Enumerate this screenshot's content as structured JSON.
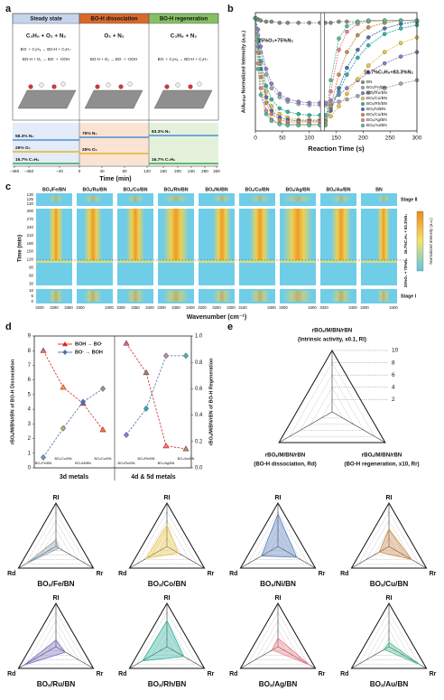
{
  "figure": {
    "panel_labels": [
      "a",
      "b",
      "c",
      "d",
      "e"
    ],
    "panel_a": {
      "phases": [
        "Steady state",
        "BO-H dissociation",
        "BO-H regeneration"
      ],
      "feeds": [
        "C₃H₈ + O₂ + N₂",
        "O₂ + N₂",
        "C₃H₈ + N₂"
      ],
      "reactions": [
        "BO· + C₃H₈ → BO-H + C₃H₇·",
        "BO-H + O₂ → BO· + ·OOH",
        "BO-H + O₂ → BO· + ·OOH",
        "BO· + C₃H₈ → BO-H + C₃H₇·"
      ],
      "gas_labels": [
        "58.3% N₂",
        "25% O₂",
        "16.7% C₃H₈",
        "75% N₂",
        "25% O₂",
        "83.3% N₂",
        "16.7% C₃H₈"
      ],
      "xticks": [
        "−480",
        "−460",
        "−40",
        "0",
        "40",
        "80",
        "120",
        "160",
        "200",
        "240",
        "280",
        "300"
      ],
      "xlabel": "Time (min)"
    },
    "panel_c": {
      "columns": [
        "BOₓ/Fe/BN",
        "BOₓ/Ru/BN",
        "BOₓ/Co/BN",
        "BOₓ/Rh/BN",
        "BOₓ/Ni/BN",
        "BOₓ/Cu/BN",
        "BOₓ/Ag/BN",
        "BOₓ/Au/BN",
        "BN"
      ],
      "stages": [
        "Stage II",
        "Stage I"
      ],
      "yticks_top": [
        "130",
        "125",
        "120"
      ],
      "yticks_mid": [
        "300",
        "270",
        "240",
        "210",
        "180",
        "150",
        "120",
        "90",
        "60",
        "30"
      ],
      "yticks_bottom": [
        "10",
        "5",
        "0"
      ],
      "side_labels": [
        "16.7%C₃H₈ + 83.3%N₂",
        "25%O₂ + 75%N₂"
      ],
      "ylabel": "Time (min)",
      "xticks": [
        [
          "3200",
          "3280",
          "3360"
        ],
        [
          "3300",
          "3400"
        ],
        [
          "3300",
          "3350",
          "3400"
        ],
        [
          "3300",
          "3350",
          "3400"
        ],
        [
          "3200",
          "3250",
          "3300"
        ],
        [
          "3150",
          "3300"
        ],
        [
          "3300",
          "3400"
        ],
        [
          "3320",
          "3400"
        ],
        [
          "3300",
          "3400"
        ]
      ],
      "xlabel": "Wavenumber (cm⁻¹)",
      "colorbar_label": "Normalized Intensity (a.u.)"
    }
  },
  "chart_data": [
    {
      "type": "line",
      "xlabel": "Reaction Time (s)",
      "ylabel": "A/Aᵢₙᵢₜᵢₐₗ Normalized Intensity (a.u.)",
      "annotations": [
        "25%O₂+75%N₂",
        "16.7%C₃H₈+83.3%N₂"
      ],
      "legend": "lower right",
      "marker": "circle",
      "xlim": [
        0,
        300
      ],
      "xticks": [
        0,
        50,
        100,
        150,
        200,
        250,
        300
      ],
      "ylim": [
        0,
        1.05
      ],
      "x": [
        0,
        5,
        10,
        20,
        30,
        45,
        60,
        80,
        100,
        120,
        130,
        140,
        155,
        170,
        190,
        210,
        240,
        270,
        300
      ],
      "series": [
        {
          "name": "BN",
          "color": "#7f8c7f",
          "values": [
            1,
            0.99,
            0.98,
            0.97,
            0.97,
            0.96,
            0.96,
            0.96,
            0.96,
            0.96,
            0.96,
            0.96,
            0.97,
            0.97,
            0.97,
            0.98,
            0.98,
            0.98,
            0.98
          ]
        },
        {
          "name": "BOₓ/Fe/BN",
          "color": "#9aa6b2",
          "values": [
            1,
            0.85,
            0.7,
            0.5,
            0.38,
            0.3,
            0.26,
            0.24,
            0.23,
            0.23,
            0.23,
            0.24,
            0.26,
            0.28,
            0.31,
            0.34,
            0.38,
            0.42,
            0.45
          ]
        },
        {
          "name": "BOₓ/Ru/BN",
          "color": "#8e7cc3",
          "values": [
            1,
            0.9,
            0.75,
            0.55,
            0.42,
            0.33,
            0.28,
            0.26,
            0.25,
            0.25,
            0.25,
            0.27,
            0.32,
            0.38,
            0.45,
            0.52,
            0.6,
            0.66,
            0.7
          ]
        },
        {
          "name": "BOₓ/Co/BN",
          "color": "#e8c547",
          "values": [
            1,
            0.8,
            0.6,
            0.35,
            0.22,
            0.15,
            0.12,
            0.1,
            0.1,
            0.1,
            0.1,
            0.13,
            0.22,
            0.33,
            0.46,
            0.58,
            0.7,
            0.78,
            0.83
          ]
        },
        {
          "name": "BOₓ/Rh/BN",
          "color": "#2fb3a0",
          "values": [
            1,
            0.8,
            0.62,
            0.4,
            0.28,
            0.2,
            0.17,
            0.15,
            0.14,
            0.14,
            0.14,
            0.2,
            0.35,
            0.5,
            0.65,
            0.76,
            0.86,
            0.91,
            0.94
          ]
        },
        {
          "name": "BOₓ/Ni/BN",
          "color": "#4a6fb5",
          "values": [
            1,
            0.75,
            0.55,
            0.3,
            0.18,
            0.12,
            0.1,
            0.09,
            0.09,
            0.09,
            0.09,
            0.18,
            0.38,
            0.56,
            0.72,
            0.83,
            0.91,
            0.95,
            0.97
          ]
        },
        {
          "name": "BOₓ/Cu/BN",
          "color": "#c98a4b",
          "values": [
            1,
            0.7,
            0.48,
            0.25,
            0.15,
            0.1,
            0.08,
            0.08,
            0.08,
            0.08,
            0.08,
            0.22,
            0.5,
            0.7,
            0.85,
            0.92,
            0.96,
            0.98,
            0.98
          ]
        },
        {
          "name": "BOₓ/Ag/BN",
          "color": "#ef7f8a",
          "values": [
            1,
            0.6,
            0.38,
            0.18,
            0.1,
            0.07,
            0.06,
            0.06,
            0.06,
            0.06,
            0.06,
            0.35,
            0.72,
            0.88,
            0.95,
            0.97,
            0.98,
            0.98,
            0.98
          ]
        },
        {
          "name": "BOₓ/Au/BN",
          "color": "#4fbf8f",
          "values": [
            1,
            0.55,
            0.32,
            0.15,
            0.09,
            0.06,
            0.05,
            0.05,
            0.05,
            0.05,
            0.05,
            0.45,
            0.82,
            0.93,
            0.97,
            0.98,
            0.98,
            0.98,
            0.98
          ]
        }
      ]
    },
    {
      "type": "line",
      "categories": [
        "BOₓ/Fe/BN",
        "BOₓ/Co/BN",
        "BOₓ/Ni/BN",
        "BOₓ/Cu/BN",
        "BOₓ/Ru/BN",
        "BOₓ/Rh/BN",
        "BOₓ/Ag/BN",
        "BOₓ/Au/BN"
      ],
      "category_colors": [
        "#8a96a3",
        "#d9b12f",
        "#4a6fb5",
        "#c98a4b",
        "#8e7cc3",
        "#2fb3a0",
        "#ef7f8a",
        "#4fbf8f"
      ],
      "groups": [
        "3d metals",
        "4d & 5d metals"
      ],
      "series": [
        {
          "name": "BOH → BO·",
          "color": "#d62728",
          "marker": "triangle",
          "values": [
            8.0,
            5.5,
            4.4,
            2.6,
            8.5,
            6.5,
            1.5,
            1.3
          ]
        },
        {
          "name": "BO· → BOH",
          "color": "#4a6fa5",
          "marker": "diamond",
          "axis": "y2",
          "values": [
            0.08,
            0.3,
            0.5,
            0.6,
            0.25,
            0.45,
            0.85,
            0.85
          ]
        }
      ],
      "ylim": [
        0,
        9
      ],
      "yticks": [
        0,
        1,
        2,
        3,
        4,
        5,
        6,
        7,
        8,
        9
      ],
      "y2lim": [
        0,
        1
      ],
      "y2ticks": [
        {
          "value": 0,
          "label": "0.0"
        },
        0.2,
        0.4,
        0.6,
        0.8,
        {
          "value": 1,
          "label": "1.0"
        }
      ],
      "ylabel": "rBOₓ/M/BN/rBN of BO-H Dissociation",
      "y2label": "rBOₓ/M/BN/rBN of BO-H Regeneration"
    },
    {
      "type": "radar",
      "axis_titles": [
        "rBOₓ/M/BN/rBN",
        "rBOₓ/M/BN/rBN",
        "rBOₓ/M/BN/rBN"
      ],
      "axis_notes": [
        "(Intrinsic activity, x0.1, RI)",
        "(BO-H dissociation, Rd)",
        "(BO-H regeneration, x10, Rr)"
      ],
      "rlim": [
        0,
        10
      ],
      "rticks": [
        2,
        4,
        6,
        8,
        10
      ]
    },
    {
      "type": "radar",
      "title": "BOₓ/Fe/BN",
      "axes": [
        "RI",
        "Rd",
        "Rr"
      ],
      "rlim": [
        0,
        10
      ],
      "rticks": [
        2,
        4,
        6,
        8,
        10
      ],
      "color": "#8fa3b0",
      "values": [
        1.5,
        8.0,
        0.8
      ]
    },
    {
      "type": "radar",
      "title": "BOₓ/Co/BN",
      "axes": [
        "RI",
        "Rd",
        "Rr"
      ],
      "rlim": [
        0,
        10
      ],
      "rticks": [
        2,
        4,
        6,
        8,
        10
      ],
      "color": "#e8c547",
      "values": [
        5,
        5.5,
        3
      ]
    },
    {
      "type": "radar",
      "title": "BOₓ/Ni/BN",
      "axes": [
        "RI",
        "Rd",
        "Rr"
      ],
      "rlim": [
        0,
        10
      ],
      "rticks": [
        2,
        4,
        6,
        8,
        10
      ],
      "color": "#5b7fbf",
      "values": [
        7.5,
        4.4,
        5
      ]
    },
    {
      "type": "radar",
      "title": "BOₓ/Cu/BN",
      "axes": [
        "RI",
        "Rd",
        "Rr"
      ],
      "rlim": [
        0,
        10
      ],
      "rticks": [
        2,
        4,
        6,
        8,
        10
      ],
      "color": "#c98a4b",
      "values": [
        4,
        2.6,
        6
      ]
    },
    {
      "type": "radar",
      "title": "BOₓ/Ru/BN",
      "axes": [
        "RI",
        "Rd",
        "Rr"
      ],
      "rlim": [
        0,
        10
      ],
      "rticks": [
        2,
        4,
        6,
        8,
        10
      ],
      "color": "#7b6fc0",
      "values": [
        1.5,
        8.5,
        2.5
      ]
    },
    {
      "type": "radar",
      "title": "BOₓ/Rh/BN",
      "axes": [
        "RI",
        "Rd",
        "Rr"
      ],
      "rlim": [
        0,
        10
      ],
      "rticks": [
        2,
        4,
        6,
        8,
        10
      ],
      "color": "#2fb3a0",
      "values": [
        6,
        6.5,
        4.5
      ]
    },
    {
      "type": "radar",
      "title": "BOₓ/Ag/BN",
      "axes": [
        "RI",
        "Rd",
        "Rr"
      ],
      "rlim": [
        0,
        10
      ],
      "rticks": [
        2,
        4,
        6,
        8,
        10
      ],
      "color": "#ef7f8a",
      "values": [
        2,
        1.5,
        8.5
      ]
    },
    {
      "type": "radar",
      "title": "BOₓ/Au/BN",
      "axes": [
        "RI",
        "Rd",
        "Rr"
      ],
      "rlim": [
        0,
        10
      ],
      "rticks": [
        2,
        4,
        6,
        8,
        10
      ],
      "color": "#4fbf8f",
      "values": [
        1,
        1.3,
        8.5
      ]
    }
  ]
}
